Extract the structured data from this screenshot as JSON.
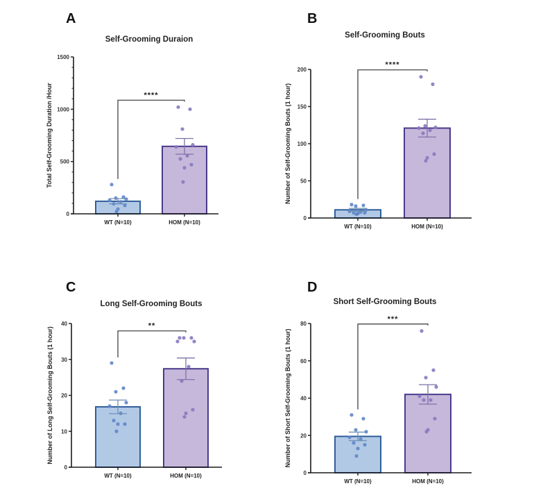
{
  "colors": {
    "wt_fill": "#b2c9e6",
    "wt_stroke": "#2f5f9a",
    "wt_dot": "#5f86c9",
    "hom_fill": "#c5b8da",
    "hom_stroke": "#4a3a8c",
    "hom_dot": "#8a78c0",
    "axis": "#1a1a1a"
  },
  "chart_data": [
    {
      "panel": "A",
      "type": "bar",
      "title": "Self-Grooming Duraion",
      "xlabel": "",
      "ylabel": "Total Self-Grooming Duration /Hour",
      "categories": [
        "WT (N=10)",
        "HOM (N=10)"
      ],
      "values": [
        120,
        645
      ],
      "sem": [
        25,
        75
      ],
      "points": [
        [
          280,
          160,
          150,
          140,
          130,
          115,
          95,
          80,
          45,
          20
        ],
        [
          1020,
          1000,
          810,
          660,
          640,
          555,
          525,
          470,
          440,
          305
        ]
      ],
      "ylim": [
        0,
        1500
      ],
      "yticks": [
        0,
        500,
        1000,
        1500
      ],
      "yminor_step": 100,
      "significance": "****",
      "grid": false
    },
    {
      "panel": "B",
      "type": "bar",
      "title": "Self-Grooming Bouts",
      "xlabel": "",
      "ylabel": "Number of Self-Grooming Bouts (1 hour)",
      "categories": [
        "WT (N=10)",
        "HOM (N=10)"
      ],
      "values": [
        11,
        121
      ],
      "sem": [
        2,
        12
      ],
      "points": [
        [
          18,
          17,
          16,
          11,
          9,
          8,
          7,
          7,
          6,
          5
        ],
        [
          190,
          180,
          124,
          122,
          121,
          118,
          114,
          86,
          81,
          77
        ]
      ],
      "ylim": [
        0,
        200
      ],
      "yticks": [
        0,
        50,
        100,
        150,
        200
      ],
      "yminor_step": null,
      "significance": "****",
      "grid": false
    },
    {
      "panel": "C",
      "type": "bar",
      "title": "Long Self-Grooming Bouts",
      "xlabel": "",
      "ylabel": "Number of Long Self-Grooming Bouts (1 hour)",
      "categories": [
        "WT (N=10)",
        "HOM (N=10)"
      ],
      "values": [
        16.8,
        27.4
      ],
      "sem": [
        1.9,
        3.0
      ],
      "points": [
        [
          29,
          22,
          21,
          18,
          17,
          15,
          13,
          12,
          12,
          10
        ],
        [
          36,
          36,
          36,
          35,
          35,
          28,
          24,
          16,
          15,
          14
        ]
      ],
      "ylim": [
        0,
        40
      ],
      "yticks": [
        0,
        10,
        20,
        30,
        40
      ],
      "yminor_step": null,
      "significance": "**",
      "grid": false
    },
    {
      "panel": "D",
      "type": "bar",
      "title": "Short Self-Grooming Bouts",
      "xlabel": "",
      "ylabel": "Number of Short Self-Grooming Bouts (1 hour)",
      "categories": [
        "WT (N=10)",
        "HOM (N=10)"
      ],
      "values": [
        19.5,
        42
      ],
      "sem": [
        2.3,
        5.2
      ],
      "points": [
        [
          31,
          29,
          23,
          22,
          19,
          18,
          16,
          15,
          13,
          9
        ],
        [
          76,
          55,
          51,
          46,
          41,
          39,
          39,
          29,
          23,
          22
        ]
      ],
      "ylim": [
        0,
        80
      ],
      "yticks": [
        0,
        20,
        40,
        60,
        80
      ],
      "yminor_step": null,
      "significance": "***",
      "grid": false
    }
  ]
}
